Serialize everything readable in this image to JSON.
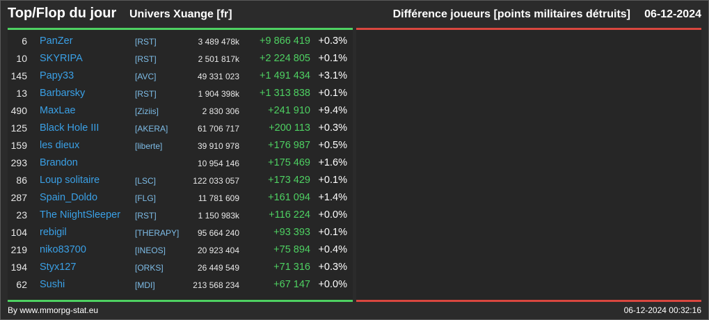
{
  "header": {
    "title": "Top/Flop du jour",
    "subtitle": "Univers Xuange [fr]",
    "right_title": "Différence joueurs [points militaires détruits]",
    "date": "06-12-2024"
  },
  "colors": {
    "background": "#2b2b2b",
    "top_accent": "#4ed162",
    "flop_accent": "#d9473f",
    "player_link": "#3aa0e6",
    "alliance_link": "#7ebde8",
    "gain": "#4ed162"
  },
  "top_players": [
    {
      "rank": "6",
      "name": "PanZer",
      "alliance": "[RST]",
      "total": "3 489 478k",
      "diff": "+9 866 419",
      "pct": "+0.3%"
    },
    {
      "rank": "10",
      "name": "SKYRIPA",
      "alliance": "[RST]",
      "total": "2 501 817k",
      "diff": "+2 224 805",
      "pct": "+0.1%"
    },
    {
      "rank": "145",
      "name": "Papy33",
      "alliance": "[AVC]",
      "total": "49 331 023",
      "diff": "+1 491 434",
      "pct": "+3.1%"
    },
    {
      "rank": "13",
      "name": "Barbarsky",
      "alliance": "[RST]",
      "total": "1 904 398k",
      "diff": "+1 313 838",
      "pct": "+0.1%"
    },
    {
      "rank": "490",
      "name": "MaxLae",
      "alliance": "[Ziziis]",
      "total": "2 830 306",
      "diff": "+241 910",
      "pct": "+9.4%"
    },
    {
      "rank": "125",
      "name": "Black Hole III",
      "alliance": "[AKERA]",
      "total": "61 706 717",
      "diff": "+200 113",
      "pct": "+0.3%"
    },
    {
      "rank": "159",
      "name": "les dieux",
      "alliance": "[liberte]",
      "total": "39 910 978",
      "diff": "+176 987",
      "pct": "+0.5%"
    },
    {
      "rank": "293",
      "name": "Brandon",
      "alliance": "",
      "total": "10 954 146",
      "diff": "+175 469",
      "pct": "+1.6%"
    },
    {
      "rank": "86",
      "name": "Loup solitaire",
      "alliance": "[LSC]",
      "total": "122 033 057",
      "diff": "+173 429",
      "pct": "+0.1%"
    },
    {
      "rank": "287",
      "name": "Spain_Doldo",
      "alliance": "[FLG]",
      "total": "11 781 609",
      "diff": "+161 094",
      "pct": "+1.4%"
    },
    {
      "rank": "23",
      "name": "The NiightSleeper",
      "alliance": "[RST]",
      "total": "1 150 983k",
      "diff": "+116 224",
      "pct": "+0.0%"
    },
    {
      "rank": "104",
      "name": "rebigil",
      "alliance": "[THERAPY]",
      "total": "95 664 240",
      "diff": "+93 393",
      "pct": "+0.1%"
    },
    {
      "rank": "219",
      "name": "niko83700",
      "alliance": "[INEOS]",
      "total": "20 923 404",
      "diff": "+75 894",
      "pct": "+0.4%"
    },
    {
      "rank": "194",
      "name": "Styx127",
      "alliance": "[ORKS]",
      "total": "26 449 549",
      "diff": "+71 316",
      "pct": "+0.3%"
    },
    {
      "rank": "62",
      "name": "Sushi",
      "alliance": "[MDI]",
      "total": "213 568 234",
      "diff": "+67 147",
      "pct": "+0.0%"
    }
  ],
  "footer": {
    "credit": "By www.mmorpg-stat.eu",
    "timestamp": "06-12-2024 00:32:16"
  }
}
